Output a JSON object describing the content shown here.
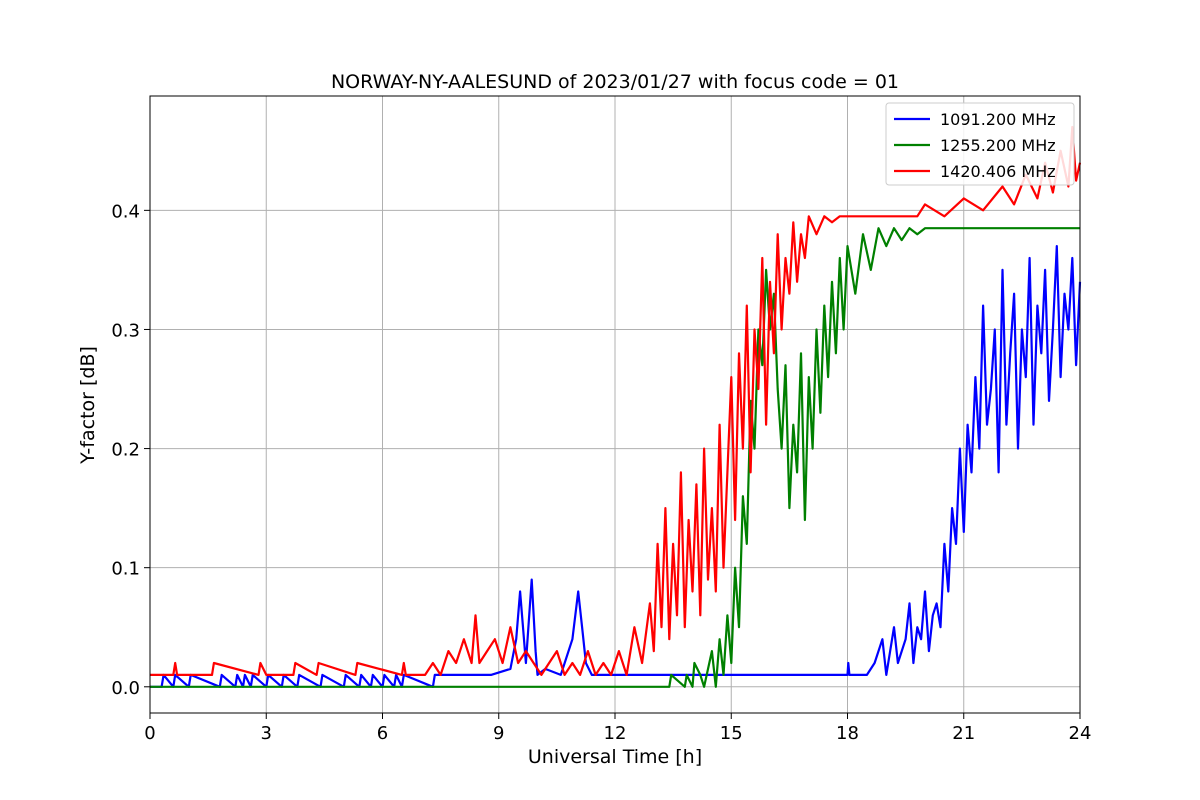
{
  "chart_data": {
    "type": "line",
    "title": "NORWAY-NY-AALESUND of 2023/01/27 with focus code = 01",
    "xlabel": "Universal Time [h]",
    "ylabel": "Y-factor [dB]",
    "xlim": [
      0,
      24
    ],
    "ylim": [
      -0.022,
      0.496
    ],
    "xticks": [
      0,
      3,
      6,
      9,
      12,
      15,
      18,
      21,
      24
    ],
    "yticks": [
      0.0,
      0.1,
      0.2,
      0.3,
      0.4
    ],
    "xtick_labels": [
      "0",
      "3",
      "6",
      "9",
      "12",
      "15",
      "18",
      "21",
      "24"
    ],
    "ytick_labels": [
      "0.0",
      "0.1",
      "0.2",
      "0.3",
      "0.4"
    ],
    "grid": true,
    "legend_position": "top-right",
    "series": [
      {
        "name": "1091.200 MHz",
        "color": "#0000ff",
        "x": [
          0,
          0.3,
          0.35,
          0.6,
          0.65,
          1.0,
          1.05,
          1.8,
          1.85,
          2.2,
          2.25,
          2.4,
          2.45,
          2.6,
          2.65,
          3.0,
          3.05,
          3.4,
          3.45,
          3.8,
          3.85,
          4.4,
          4.45,
          5.0,
          5.05,
          5.4,
          5.45,
          5.7,
          5.75,
          6.0,
          6.05,
          6.3,
          6.35,
          6.5,
          6.55,
          7.3,
          7.35,
          8.8,
          9.3,
          9.45,
          9.55,
          9.7,
          9.85,
          9.95,
          10.0,
          10.2,
          10.6,
          10.9,
          11.05,
          11.15,
          11.25,
          11.4,
          11.7,
          12.2,
          12.5,
          14.5,
          15.0,
          18.0,
          18.02,
          18.05,
          18.5,
          18.7,
          18.9,
          19.0,
          19.2,
          19.3,
          19.5,
          19.6,
          19.7,
          19.8,
          19.9,
          20.0,
          20.1,
          20.2,
          20.3,
          20.4,
          20.5,
          20.6,
          20.7,
          20.8,
          20.9,
          21.0,
          21.1,
          21.2,
          21.3,
          21.4,
          21.5,
          21.6,
          21.7,
          21.8,
          21.9,
          22.0,
          22.1,
          22.2,
          22.3,
          22.4,
          22.5,
          22.6,
          22.7,
          22.8,
          22.9,
          23.0,
          23.1,
          23.2,
          23.3,
          23.4,
          23.5,
          23.6,
          23.7,
          23.8,
          23.9,
          24.0
        ],
        "y": [
          0.0,
          0.0,
          0.01,
          0.0,
          0.01,
          0.0,
          0.01,
          0.0,
          0.01,
          0.0,
          0.01,
          0.0,
          0.01,
          0.0,
          0.01,
          0.0,
          0.01,
          0.0,
          0.01,
          0.0,
          0.01,
          0.0,
          0.01,
          0.0,
          0.01,
          0.0,
          0.01,
          0.0,
          0.01,
          0.0,
          0.01,
          0.0,
          0.01,
          0.0,
          0.01,
          0.0,
          0.01,
          0.01,
          0.015,
          0.04,
          0.08,
          0.02,
          0.09,
          0.03,
          0.01,
          0.015,
          0.01,
          0.04,
          0.08,
          0.05,
          0.02,
          0.01,
          0.01,
          0.01,
          0.01,
          0.01,
          0.01,
          0.01,
          0.02,
          0.01,
          0.01,
          0.02,
          0.04,
          0.01,
          0.05,
          0.02,
          0.04,
          0.07,
          0.02,
          0.05,
          0.04,
          0.08,
          0.03,
          0.06,
          0.07,
          0.05,
          0.12,
          0.08,
          0.15,
          0.12,
          0.2,
          0.13,
          0.22,
          0.18,
          0.26,
          0.2,
          0.32,
          0.22,
          0.25,
          0.3,
          0.18,
          0.35,
          0.22,
          0.28,
          0.33,
          0.2,
          0.3,
          0.26,
          0.36,
          0.22,
          0.32,
          0.28,
          0.35,
          0.24,
          0.3,
          0.37,
          0.26,
          0.33,
          0.3,
          0.36,
          0.27,
          0.34
        ]
      },
      {
        "name": "1255.200 MHz",
        "color": "#008000",
        "x": [
          0,
          12.8,
          13.4,
          13.45,
          13.8,
          13.85,
          14.0,
          14.05,
          14.2,
          14.3,
          14.5,
          14.6,
          14.7,
          14.8,
          14.9,
          15.0,
          15.1,
          15.2,
          15.3,
          15.4,
          15.5,
          15.6,
          15.7,
          15.8,
          15.9,
          16.0,
          16.1,
          16.2,
          16.3,
          16.4,
          16.5,
          16.6,
          16.7,
          16.8,
          16.9,
          17.0,
          17.1,
          17.2,
          17.3,
          17.4,
          17.5,
          17.6,
          17.7,
          17.8,
          17.9,
          18.0,
          18.2,
          18.4,
          18.6,
          18.8,
          19.0,
          19.2,
          19.4,
          19.6,
          19.8,
          20.0,
          20.2,
          24.0
        ],
        "y": [
          0.0,
          0.0,
          0.0,
          0.01,
          0.0,
          0.01,
          0.0,
          0.02,
          0.01,
          0.0,
          0.03,
          0.0,
          0.04,
          0.01,
          0.06,
          0.02,
          0.1,
          0.05,
          0.16,
          0.12,
          0.24,
          0.2,
          0.3,
          0.27,
          0.35,
          0.3,
          0.33,
          0.25,
          0.2,
          0.27,
          0.15,
          0.22,
          0.18,
          0.28,
          0.14,
          0.26,
          0.2,
          0.3,
          0.23,
          0.32,
          0.26,
          0.34,
          0.28,
          0.36,
          0.3,
          0.37,
          0.33,
          0.38,
          0.35,
          0.385,
          0.37,
          0.385,
          0.375,
          0.385,
          0.38,
          0.385,
          0.385,
          0.385
        ]
      },
      {
        "name": "1420.406 MHz",
        "color": "#ff0000",
        "x": [
          0,
          0.6,
          0.65,
          0.7,
          1.6,
          1.65,
          2.8,
          2.85,
          3.0,
          3.7,
          3.75,
          4.3,
          4.35,
          5.3,
          5.35,
          6.5,
          6.55,
          6.6,
          7.1,
          7.3,
          7.5,
          7.7,
          7.9,
          8.1,
          8.3,
          8.4,
          8.5,
          8.7,
          8.9,
          9.1,
          9.3,
          9.5,
          9.7,
          9.9,
          10.1,
          10.3,
          10.5,
          10.7,
          10.9,
          11.1,
          11.3,
          11.5,
          11.7,
          11.9,
          12.1,
          12.3,
          12.5,
          12.7,
          12.9,
          13.0,
          13.1,
          13.2,
          13.3,
          13.4,
          13.5,
          13.6,
          13.7,
          13.8,
          13.9,
          14.0,
          14.1,
          14.2,
          14.3,
          14.4,
          14.5,
          14.6,
          14.7,
          14.8,
          14.9,
          15.0,
          15.1,
          15.2,
          15.3,
          15.4,
          15.5,
          15.6,
          15.7,
          15.8,
          15.9,
          16.0,
          16.1,
          16.2,
          16.3,
          16.4,
          16.5,
          16.6,
          16.7,
          16.8,
          16.9,
          17.0,
          17.2,
          17.4,
          17.6,
          17.8,
          18.0,
          18.5,
          19.0,
          19.5,
          19.8,
          20.0,
          20.5,
          21.0,
          21.5,
          22.0,
          22.3,
          22.6,
          22.9,
          23.1,
          23.3,
          23.5,
          23.7,
          23.8,
          23.9,
          24.0
        ],
        "y": [
          0.01,
          0.01,
          0.02,
          0.01,
          0.01,
          0.02,
          0.01,
          0.02,
          0.01,
          0.01,
          0.02,
          0.01,
          0.02,
          0.01,
          0.02,
          0.01,
          0.02,
          0.01,
          0.01,
          0.02,
          0.01,
          0.03,
          0.02,
          0.04,
          0.02,
          0.06,
          0.02,
          0.03,
          0.04,
          0.02,
          0.05,
          0.02,
          0.03,
          0.02,
          0.01,
          0.02,
          0.03,
          0.01,
          0.02,
          0.01,
          0.03,
          0.01,
          0.02,
          0.01,
          0.03,
          0.01,
          0.05,
          0.02,
          0.07,
          0.03,
          0.12,
          0.05,
          0.15,
          0.04,
          0.12,
          0.06,
          0.18,
          0.05,
          0.14,
          0.08,
          0.17,
          0.06,
          0.2,
          0.09,
          0.15,
          0.08,
          0.22,
          0.1,
          0.18,
          0.26,
          0.14,
          0.28,
          0.2,
          0.32,
          0.18,
          0.3,
          0.25,
          0.36,
          0.22,
          0.34,
          0.28,
          0.38,
          0.3,
          0.36,
          0.33,
          0.39,
          0.34,
          0.38,
          0.36,
          0.395,
          0.38,
          0.395,
          0.39,
          0.395,
          0.395,
          0.395,
          0.395,
          0.395,
          0.395,
          0.405,
          0.395,
          0.41,
          0.4,
          0.42,
          0.405,
          0.43,
          0.41,
          0.44,
          0.415,
          0.45,
          0.42,
          0.47,
          0.425,
          0.44
        ]
      }
    ]
  }
}
